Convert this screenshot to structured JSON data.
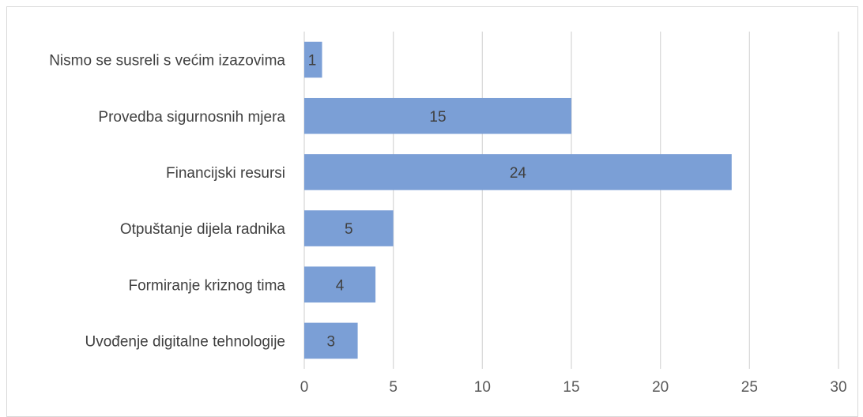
{
  "chart_data": {
    "type": "bar",
    "orientation": "horizontal",
    "title": "",
    "xlabel": "",
    "ylabel": "",
    "categories": [
      "Nismo se susreli s većim izazovima",
      "Provedba sigurnosnih mjera",
      "Financijski resursi",
      "Otpuštanje dijela radnika",
      "Formiranje kriznog tima",
      "Uvođenje digitalne tehnologije"
    ],
    "values": [
      1,
      15,
      24,
      5,
      4,
      3
    ],
    "xlim": [
      0,
      30
    ],
    "xticks": [
      0,
      5,
      10,
      15,
      20,
      25,
      30
    ],
    "grid": true,
    "legend": "none",
    "data_labels": true,
    "colors": {
      "bar": "#7b9fd6",
      "grid": "#d9d9d9",
      "frame": "#d9d9d9",
      "text": "#404040"
    }
  }
}
